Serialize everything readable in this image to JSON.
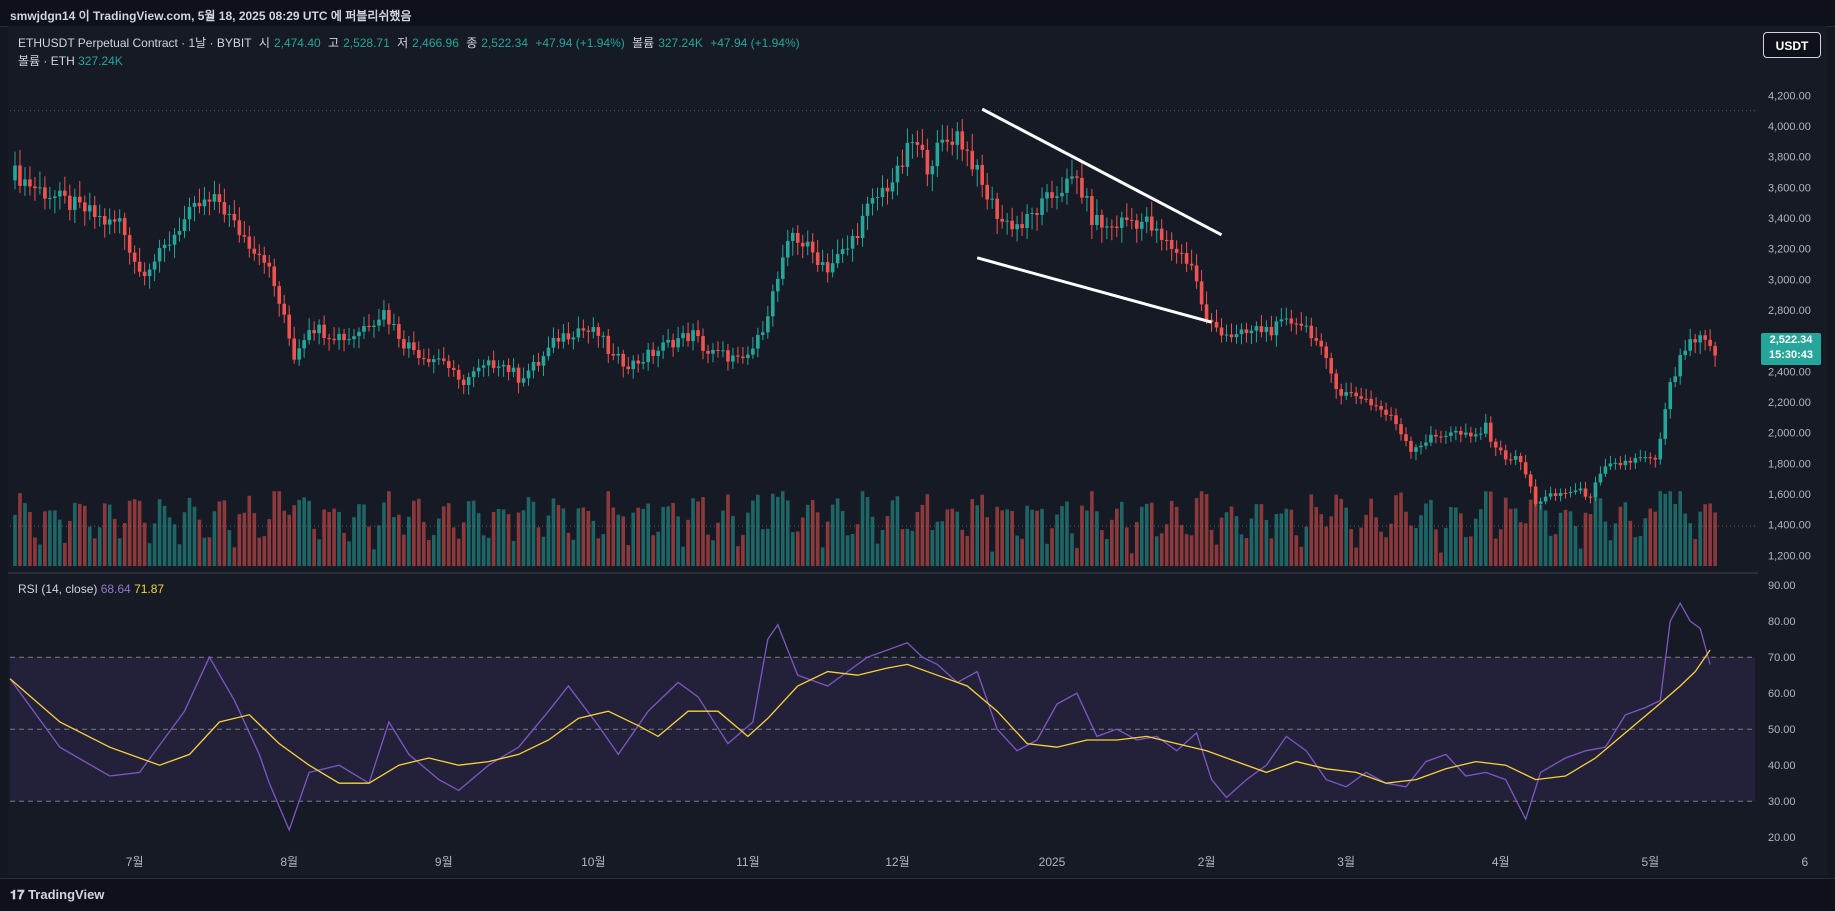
{
  "header": {
    "title": "smwjdgn14 이 TradingView.com, 5월 18, 2025 08:29 UTC 에 퍼블리쉬했음"
  },
  "legend": {
    "symbol": "ETHUSDT Perpetual Contract · 1날 · BYBIT",
    "o_label": "시",
    "o": "2,474.40",
    "h_label": "고",
    "h": "2,528.71",
    "l_label": "저",
    "l": "2,466.96",
    "c_label": "종",
    "c": "2,522.34",
    "change": "+47.94 (+1.94%)",
    "vol_label": "볼륨",
    "vol": "327.24K",
    "vol_change": "+47.94 (+1.94%)",
    "vol_line_label": "볼륨 · ETH",
    "vol_line_value": "327.24K"
  },
  "rsi_legend": {
    "label": "RSI (14, close)",
    "rsi": "68.64",
    "ma": "71.87"
  },
  "currency_button": "USDT",
  "last_price": {
    "price": "2,522.34",
    "countdown": "15:30:43"
  },
  "footer": {
    "brand": "TradingView"
  },
  "colors": {
    "up": "#26a69a",
    "down": "#ef5350",
    "rsi": "#7e57c2",
    "rsi_ma": "#f7d23d",
    "trendline": "#ffffff"
  },
  "chart_data": [
    {
      "type": "candlestick",
      "title": "ETHUSDT Perpetual Contract · 1날 · BYBIT",
      "y_axis_ticks": [
        4200,
        4000,
        3800,
        3600,
        3400,
        3200,
        3000,
        2800,
        2600,
        2400,
        2200,
        2000,
        1800,
        1600,
        1400,
        1200
      ],
      "y_axis_labels": [
        "4,200.00",
        "4,000.00",
        "3,800.00",
        "3,600.00",
        "3,400.00",
        "3,200.00",
        "3,000.00",
        "2,800.00",
        "2,600.00",
        "2,400.00",
        "2,200.00",
        "2,000.00",
        "1,800.00",
        "1,600.00",
        "1,400.00",
        "1,200.00"
      ],
      "ylim": [
        1130,
        4300
      ],
      "x_labels": [
        "7월",
        "8월",
        "9월",
        "10월",
        "11월",
        "12월",
        "2025",
        "2월",
        "3월",
        "4월",
        "5월",
        "6"
      ],
      "x_label_days": [
        25,
        56,
        87,
        117,
        148,
        178,
        209,
        240,
        268,
        299,
        329,
        360
      ],
      "close_path": [
        [
          0,
          3710
        ],
        [
          5,
          3600
        ],
        [
          10,
          3520
        ],
        [
          15,
          3450
        ],
        [
          20,
          3360
        ],
        [
          22,
          3380
        ],
        [
          26,
          3050
        ],
        [
          30,
          3150
        ],
        [
          34,
          3350
        ],
        [
          38,
          3480
        ],
        [
          42,
          3510
        ],
        [
          45,
          3350
        ],
        [
          48,
          3240
        ],
        [
          51,
          3150
        ],
        [
          54,
          2850
        ],
        [
          57,
          2500
        ],
        [
          60,
          2700
        ],
        [
          64,
          2650
        ],
        [
          68,
          2620
        ],
        [
          72,
          2720
        ],
        [
          75,
          2790
        ],
        [
          79,
          2590
        ],
        [
          83,
          2500
        ],
        [
          87,
          2480
        ],
        [
          90,
          2320
        ],
        [
          94,
          2400
        ],
        [
          98,
          2470
        ],
        [
          102,
          2360
        ],
        [
          106,
          2450
        ],
        [
          110,
          2620
        ],
        [
          114,
          2680
        ],
        [
          118,
          2640
        ],
        [
          121,
          2480
        ],
        [
          125,
          2450
        ],
        [
          129,
          2520
        ],
        [
          133,
          2600
        ],
        [
          137,
          2640
        ],
        [
          140,
          2520
        ],
        [
          144,
          2500
        ],
        [
          147,
          2450
        ],
        [
          150,
          2600
        ],
        [
          153,
          2900
        ],
        [
          157,
          3300
        ],
        [
          160,
          3200
        ],
        [
          164,
          3080
        ],
        [
          168,
          3200
        ],
        [
          172,
          3450
        ],
        [
          175,
          3580
        ],
        [
          178,
          3680
        ],
        [
          181,
          3900
        ],
        [
          184,
          3750
        ],
        [
          187,
          3880
        ],
        [
          190,
          3950
        ],
        [
          193,
          3770
        ],
        [
          195,
          3600
        ],
        [
          199,
          3380
        ],
        [
          203,
          3350
        ],
        [
          207,
          3480
        ],
        [
          211,
          3600
        ],
        [
          214,
          3650
        ],
        [
          217,
          3400
        ],
        [
          220,
          3330
        ],
        [
          224,
          3390
        ],
        [
          228,
          3370
        ],
        [
          231,
          3250
        ],
        [
          234,
          3190
        ],
        [
          237,
          3100
        ],
        [
          240,
          2720
        ],
        [
          243,
          2670
        ],
        [
          246,
          2620
        ],
        [
          250,
          2670
        ],
        [
          254,
          2680
        ],
        [
          258,
          2740
        ],
        [
          261,
          2660
        ],
        [
          264,
          2450
        ],
        [
          267,
          2260
        ],
        [
          271,
          2240
        ],
        [
          275,
          2150
        ],
        [
          278,
          2060
        ],
        [
          281,
          1900
        ],
        [
          285,
          1960
        ],
        [
          289,
          2010
        ],
        [
          293,
          1960
        ],
        [
          296,
          2030
        ],
        [
          299,
          1860
        ],
        [
          303,
          1810
        ],
        [
          306,
          1550
        ],
        [
          309,
          1580
        ],
        [
          313,
          1620
        ],
        [
          317,
          1600
        ],
        [
          320,
          1760
        ],
        [
          324,
          1810
        ],
        [
          328,
          1830
        ],
        [
          330,
          1800
        ],
        [
          333,
          2300
        ],
        [
          336,
          2550
        ],
        [
          339,
          2600
        ],
        [
          342,
          2520
        ]
      ],
      "volume_note": "Volume bars per day, ETH",
      "volume_range": [
        0,
        900000
      ]
    },
    {
      "type": "line",
      "title": "RSI (14, close)",
      "series": [
        {
          "name": "RSI",
          "points": [
            [
              0,
              64
            ],
            [
              10,
              45
            ],
            [
              20,
              37
            ],
            [
              26,
              38
            ],
            [
              35,
              55
            ],
            [
              40,
              70
            ],
            [
              45,
              58
            ],
            [
              50,
              43
            ],
            [
              52,
              35
            ],
            [
              56,
              22
            ],
            [
              60,
              38
            ],
            [
              66,
              40
            ],
            [
              72,
              35
            ],
            [
              76,
              52
            ],
            [
              80,
              43
            ],
            [
              86,
              36
            ],
            [
              90,
              33
            ],
            [
              96,
              40
            ],
            [
              102,
              45
            ],
            [
              108,
              55
            ],
            [
              112,
              62
            ],
            [
              118,
              51
            ],
            [
              122,
              43
            ],
            [
              128,
              55
            ],
            [
              134,
              63
            ],
            [
              138,
              59
            ],
            [
              144,
              46
            ],
            [
              149,
              52
            ],
            [
              152,
              75
            ],
            [
              154,
              79
            ],
            [
              158,
              65
            ],
            [
              164,
              62
            ],
            [
              168,
              66
            ],
            [
              172,
              70
            ],
            [
              176,
              72
            ],
            [
              180,
              74
            ],
            [
              183,
              70
            ],
            [
              186,
              68
            ],
            [
              190,
              63
            ],
            [
              194,
              66
            ],
            [
              198,
              50
            ],
            [
              202,
              44
            ],
            [
              206,
              47
            ],
            [
              210,
              57
            ],
            [
              214,
              60
            ],
            [
              218,
              48
            ],
            [
              222,
              50
            ],
            [
              226,
              47
            ],
            [
              230,
              48
            ],
            [
              234,
              44
            ],
            [
              238,
              49
            ],
            [
              241,
              36
            ],
            [
              244,
              31
            ],
            [
              248,
              36
            ],
            [
              252,
              40
            ],
            [
              256,
              48
            ],
            [
              260,
              44
            ],
            [
              264,
              36
            ],
            [
              268,
              34
            ],
            [
              272,
              38
            ],
            [
              276,
              35
            ],
            [
              280,
              34
            ],
            [
              284,
              41
            ],
            [
              288,
              43
            ],
            [
              292,
              37
            ],
            [
              296,
              38
            ],
            [
              300,
              36
            ],
            [
              304,
              25
            ],
            [
              307,
              38
            ],
            [
              312,
              42
            ],
            [
              316,
              44
            ],
            [
              320,
              45
            ],
            [
              324,
              54
            ],
            [
              328,
              56
            ],
            [
              331,
              58
            ],
            [
              333,
              80
            ],
            [
              335,
              85
            ],
            [
              337,
              80
            ],
            [
              339,
              78
            ],
            [
              341,
              68
            ]
          ]
        },
        {
          "name": "RSI-based MA",
          "points": [
            [
              0,
              64
            ],
            [
              10,
              52
            ],
            [
              20,
              45
            ],
            [
              30,
              40
            ],
            [
              36,
              43
            ],
            [
              42,
              52
            ],
            [
              48,
              54
            ],
            [
              54,
              46
            ],
            [
              60,
              40
            ],
            [
              66,
              35
            ],
            [
              72,
              35
            ],
            [
              78,
              40
            ],
            [
              84,
              42
            ],
            [
              90,
              40
            ],
            [
              96,
              41
            ],
            [
              102,
              43
            ],
            [
              108,
              47
            ],
            [
              114,
              53
            ],
            [
              120,
              55
            ],
            [
              126,
              51
            ],
            [
              130,
              48
            ],
            [
              136,
              55
            ],
            [
              142,
              55
            ],
            [
              148,
              48
            ],
            [
              152,
              53
            ],
            [
              158,
              62
            ],
            [
              164,
              66
            ],
            [
              170,
              65
            ],
            [
              176,
              67
            ],
            [
              180,
              68
            ],
            [
              186,
              65
            ],
            [
              192,
              62
            ],
            [
              198,
              55
            ],
            [
              204,
              46
            ],
            [
              210,
              45
            ],
            [
              216,
              47
            ],
            [
              222,
              47
            ],
            [
              228,
              48
            ],
            [
              234,
              46
            ],
            [
              240,
              44
            ],
            [
              246,
              41
            ],
            [
              252,
              38
            ],
            [
              258,
              41
            ],
            [
              264,
              39
            ],
            [
              270,
              38
            ],
            [
              276,
              35
            ],
            [
              282,
              36
            ],
            [
              288,
              39
            ],
            [
              294,
              41
            ],
            [
              300,
              40
            ],
            [
              306,
              36
            ],
            [
              312,
              37
            ],
            [
              318,
              42
            ],
            [
              324,
              49
            ],
            [
              330,
              56
            ],
            [
              335,
              62
            ],
            [
              338,
              66
            ],
            [
              341,
              72
            ]
          ]
        }
      ],
      "y_axis_labels": [
        "90.00",
        "80.00",
        "70.00",
        "60.00",
        "50.00",
        "40.00",
        "30.00",
        "20.00"
      ],
      "ylim": [
        17,
        92
      ],
      "bands": {
        "upper": 70,
        "middle": 50,
        "lower": 30
      }
    }
  ],
  "annotations": {
    "trendline_upper": [
      [
        195,
        4110
      ],
      [
        243,
        3290
      ]
    ],
    "trendline_lower": [
      [
        194,
        3140
      ],
      [
        241,
        2720
      ]
    ]
  }
}
